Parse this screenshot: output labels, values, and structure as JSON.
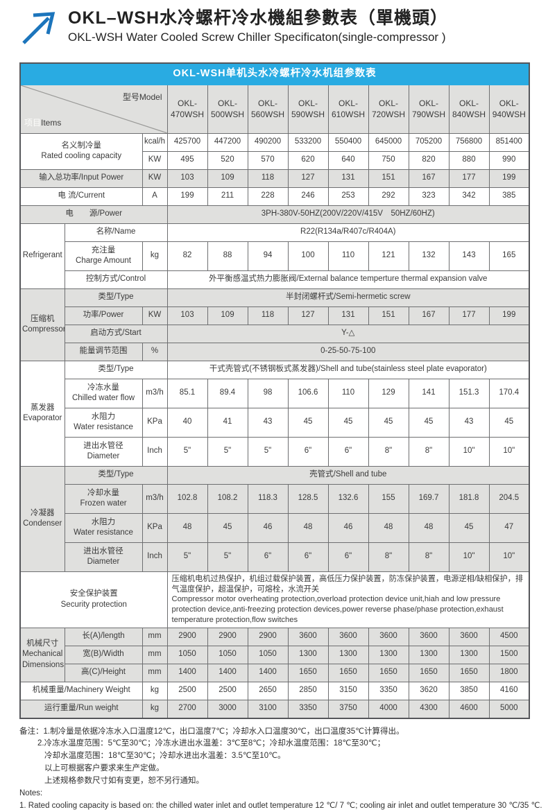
{
  "page": {
    "title_cn": "OKL–WSH水冷螺杆冷水機組參數表（單機頭）",
    "title_en": "OKL-WSH Water Cooled Screw Chiller Specificaton(single-compressor )"
  },
  "colors": {
    "banner_blue": "#29abe2",
    "logo_blue": "#1c75bc",
    "row_gray": "#e0e0de",
    "border": "#6d6e70"
  },
  "table": {
    "banner": "OKL-WSH单机头水冷螺杆冷水机组参数表",
    "corner": {
      "items_cn": "项目",
      "items_en": "Items",
      "model_label": "型号Model"
    },
    "models": [
      "OKL-470WSH",
      "OKL-500WSH",
      "OKL-560WSH",
      "OKL-590WSH",
      "OKL-610WSH",
      "OKL-720WSH",
      "OKL-790WSH",
      "OKL-840WSH",
      "OKL-940WSH"
    ],
    "rows": [
      {
        "name": "rated-capacity-kcal",
        "shade": "white",
        "h": "single",
        "label": {
          "lines": [
            "名义制冷量",
            "Rated cooling capacity"
          ],
          "colspan": 2,
          "rowspan": 2
        },
        "unit": "kcal/h",
        "values": [
          425700,
          447200,
          490200,
          533200,
          550400,
          645000,
          705200,
          756800,
          851400
        ]
      },
      {
        "name": "rated-capacity-kw",
        "shade": "white",
        "h": "single",
        "unit": "KW",
        "values": [
          495,
          520,
          570,
          620,
          640,
          750,
          820,
          880,
          990
        ]
      },
      {
        "name": "input-power",
        "shade": "gray",
        "h": "single",
        "label": {
          "lines": [
            "输入总功率/Input Power"
          ],
          "colspan": 2
        },
        "unit": "KW",
        "values": [
          103,
          109,
          118,
          127,
          131,
          151,
          167,
          177,
          199
        ]
      },
      {
        "name": "current",
        "shade": "white",
        "h": "single",
        "label": {
          "lines": [
            "电  流/Current"
          ],
          "colspan": 2
        },
        "unit": "A",
        "values": [
          199,
          211,
          228,
          246,
          253,
          292,
          323,
          342,
          385
        ]
      },
      {
        "name": "power-supply",
        "shade": "gray",
        "h": "single",
        "label": {
          "lines": [
            "电　　源/Power"
          ],
          "colspan": 3
        },
        "merged": "3PH-380V-50HZ(200V/220V/415V　50HZ/60HZ)"
      },
      {
        "name": "refrigerant-name",
        "shade": "white",
        "h": "single",
        "group": {
          "lines": [
            "Refrigerant"
          ],
          "rowspan": 3
        },
        "label": {
          "lines": [
            "名称/Name"
          ],
          "colspan": 2
        },
        "merged": "R22(R134a/R407c/R404A)"
      },
      {
        "name": "refrigerant-charge",
        "shade": "white",
        "h": "double",
        "label": {
          "lines": [
            "充注量",
            "Charge Amount"
          ]
        },
        "unit": "kg",
        "values": [
          82,
          88,
          94,
          100,
          110,
          121,
          132,
          143,
          165
        ]
      },
      {
        "name": "refrigerant-control",
        "shade": "white",
        "h": "single",
        "label": {
          "lines": [
            "控制方式/Control"
          ],
          "colspan": 2
        },
        "merged": "外平衡感温式热力膨胀阀/External balance temperture thermal expansion valve"
      },
      {
        "name": "compressor-type",
        "shade": "gray",
        "h": "single",
        "group": {
          "lines": [
            "压缩机",
            "Compressor"
          ],
          "rowspan": 4
        },
        "label": {
          "lines": [
            "类型/Type"
          ],
          "colspan": 2
        },
        "merged": "半封闭螺杆式/Semi-hermetic screw"
      },
      {
        "name": "compressor-power",
        "shade": "gray",
        "h": "single",
        "label": {
          "lines": [
            "功率/Power"
          ]
        },
        "unit": "KW",
        "values": [
          103,
          109,
          118,
          127,
          131,
          151,
          167,
          177,
          199
        ]
      },
      {
        "name": "compressor-start",
        "shade": "gray",
        "h": "single",
        "label": {
          "lines": [
            "启动方式/Start"
          ],
          "colspan": 2
        },
        "merged": "Y-△"
      },
      {
        "name": "compressor-energy-range",
        "shade": "gray",
        "h": "single",
        "label": {
          "lines": [
            "能量调节范围"
          ]
        },
        "unit": "%",
        "merged_after_unit": "0-25-50-75-100"
      },
      {
        "name": "evaporator-type",
        "shade": "white",
        "h": "single",
        "group": {
          "lines": [
            "蒸发器",
            "Evaporator"
          ],
          "rowspan": 4
        },
        "label": {
          "lines": [
            "类型/Type"
          ],
          "colspan": 2
        },
        "merged": "干式壳管式(不锈钢板式蒸发器)/Shell and tube(stainless steel plate evaporator)"
      },
      {
        "name": "evaporator-chilled-flow",
        "shade": "white",
        "h": "double",
        "label": {
          "lines": [
            "冷冻水量",
            "Chilled water flow"
          ]
        },
        "unit": "m3/h",
        "values": [
          85.1,
          89.4,
          98,
          106.6,
          110,
          129,
          141,
          151.3,
          170.4
        ]
      },
      {
        "name": "evaporator-water-resistance",
        "shade": "white",
        "h": "double",
        "label": {
          "lines": [
            "水阻力",
            "Water resistance"
          ]
        },
        "unit": "KPa",
        "values": [
          40,
          41,
          43,
          45,
          45,
          45,
          45,
          43,
          45
        ]
      },
      {
        "name": "evaporator-diameter",
        "shade": "white",
        "h": "double",
        "label": {
          "lines": [
            "进出水管径",
            "Diameter"
          ]
        },
        "unit": "Inch",
        "values": [
          "5\"",
          "5\"",
          "5\"",
          "6\"",
          "6\"",
          "8\"",
          "8\"",
          "10\"",
          "10\""
        ]
      },
      {
        "name": "condenser-type",
        "shade": "gray",
        "h": "single",
        "group": {
          "lines": [
            "冷凝器",
            "Condenser"
          ],
          "rowspan": 4
        },
        "label": {
          "lines": [
            "类型/Type"
          ],
          "colspan": 2
        },
        "merged": "壳管式/Shell and tube"
      },
      {
        "name": "condenser-water-flow",
        "shade": "gray",
        "h": "double",
        "label": {
          "lines": [
            "冷却水量",
            "Frozen water"
          ]
        },
        "unit": "m3/h",
        "values": [
          102.8,
          108.2,
          118.3,
          128.5,
          132.6,
          155,
          169.7,
          181.8,
          204.5
        ]
      },
      {
        "name": "condenser-water-resistance",
        "shade": "gray",
        "h": "double",
        "label": {
          "lines": [
            "水阻力",
            "Water resistance"
          ]
        },
        "unit": "KPa",
        "values": [
          48,
          45,
          46,
          48,
          46,
          48,
          48,
          45,
          47
        ]
      },
      {
        "name": "condenser-diameter",
        "shade": "gray",
        "h": "double",
        "label": {
          "lines": [
            "进出水管径",
            "Diameter"
          ]
        },
        "unit": "Inch",
        "values": [
          "5\"",
          "5\"",
          "6\"",
          "6\"",
          "6\"",
          "8\"",
          "8\"",
          "10\"",
          "10\""
        ]
      },
      {
        "name": "security-protection",
        "shade": "white",
        "h": "double",
        "label": {
          "lines": [
            "安全保护装置",
            "Security protection"
          ],
          "colspan": 3
        },
        "merged": "压缩机电机过热保护，机组过载保护装置，高低压力保护装置，防冻保护装置，电源逆相/缺相保护，排气温度保护，超温保护，可熔栓，水流开关\nCompressor motor overheating protection,overload protection device unit,hiah and low pressure protection device,anti-freezing protection devices,power reverse phase/phase protection,exhaust temperature protection,flow switches",
        "merged_align": "left"
      },
      {
        "name": "dims-length",
        "shade": "gray",
        "h": "single",
        "group": {
          "lines": [
            "机械尺寸",
            "Mechanical",
            "Dimensions"
          ],
          "rowspan": 3
        },
        "label": {
          "lines": [
            "长(A)/length"
          ]
        },
        "unit": "mm",
        "values": [
          2900,
          2900,
          2900,
          3600,
          3600,
          3600,
          3600,
          3600,
          4500
        ]
      },
      {
        "name": "dims-width",
        "shade": "gray",
        "h": "single",
        "label": {
          "lines": [
            "宽(B)/Width"
          ]
        },
        "unit": "mm",
        "values": [
          1050,
          1050,
          1050,
          1300,
          1300,
          1300,
          1300,
          1300,
          1500
        ]
      },
      {
        "name": "dims-height",
        "shade": "gray",
        "h": "single",
        "label": {
          "lines": [
            "高(C)/Height"
          ]
        },
        "unit": "mm",
        "values": [
          1400,
          1400,
          1400,
          1650,
          1650,
          1650,
          1650,
          1650,
          1800
        ]
      },
      {
        "name": "machinery-weight",
        "shade": "white",
        "h": "single",
        "label": {
          "lines": [
            "机械重量/Machinery Weight"
          ],
          "colspan": 2
        },
        "unit": "kg",
        "values": [
          2500,
          2500,
          2650,
          2850,
          3150,
          3350,
          3620,
          3850,
          4160
        ]
      },
      {
        "name": "run-weight",
        "shade": "gray",
        "h": "single",
        "label": {
          "lines": [
            "运行重量/Run weight"
          ],
          "colspan": 2
        },
        "unit": "kg",
        "values": [
          2700,
          3000,
          3100,
          3350,
          3750,
          4000,
          4300,
          4600,
          5000
        ]
      }
    ]
  },
  "notes": {
    "lines": [
      {
        "text": "备注：1.制冷量是依据冷冻水入口温度12℃，出口温度7℃；冷却水入口温度30℃，出口温度35℃计算得出。",
        "indent": 0
      },
      {
        "text": "2.冷冻水温度范围：5℃至30℃；冷冻水进出水温差：3℃至8℃；冷却水温度范围：18℃至30℃；",
        "indent": 1
      },
      {
        "text": "冷却水温度范围：18℃至30℃；冷却水进出水温差：3.5℃至10℃。",
        "indent": 2
      },
      {
        "text": "以上可根据客户要求来生产定做。",
        "indent": 2
      },
      {
        "text": "上述规格参数尺寸如有变更，恕不另行通知。",
        "indent": 2
      },
      {
        "text": "Notes:",
        "indent": 0
      },
      {
        "text": "1. Rated cooling capacity is based on: the chilled water inlet and outlet temperature 12 ℃/ 7 ℃; cooling air inlet and outlet temperature 30 ℃/35 ℃.",
        "indent": 0
      }
    ]
  }
}
